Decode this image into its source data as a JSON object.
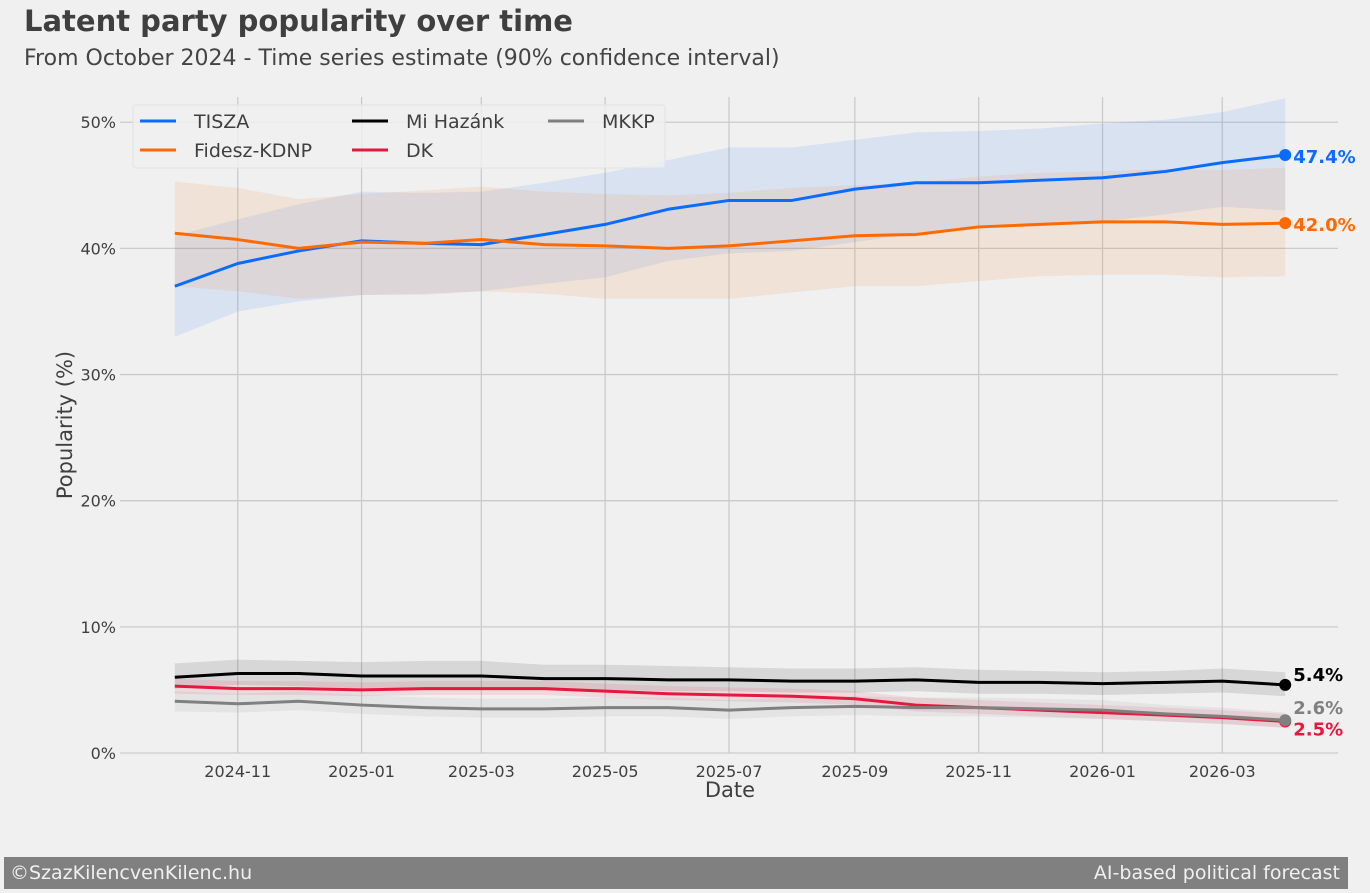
{
  "chart_data": {
    "type": "line",
    "title": "Latent party popularity over time",
    "subtitle": "From October 2024 - Time series estimate (90% confidence interval)",
    "xlabel": "Date",
    "ylabel": "Popularity (%)",
    "xlim": [
      "2024-09-04",
      "2026-04-27"
    ],
    "ylim": [
      0,
      52
    ],
    "grid": true,
    "legend_placement": "top-left",
    "x_ticks": [
      "2024-11",
      "2025-01",
      "2025-03",
      "2025-05",
      "2025-07",
      "2025-09",
      "2025-11",
      "2026-01",
      "2026-03"
    ],
    "y_ticks": [
      0,
      10,
      20,
      30,
      40,
      50
    ],
    "y_tick_labels": [
      "0%",
      "10%",
      "20%",
      "30%",
      "40%",
      "50%"
    ],
    "x": [
      "2024-10-01",
      "2024-11-01",
      "2024-12-01",
      "2025-01-01",
      "2025-02-01",
      "2025-03-01",
      "2025-04-01",
      "2025-05-01",
      "2025-06-01",
      "2025-07-01",
      "2025-08-01",
      "2025-09-01",
      "2025-10-01",
      "2025-11-01",
      "2025-12-01",
      "2026-01-01",
      "2026-02-01",
      "2026-03-01",
      "2026-04-01"
    ],
    "series": [
      {
        "name": "TISZA",
        "color": "#0a6cff",
        "end_label": "47.4%",
        "values": [
          37.0,
          38.8,
          39.8,
          40.6,
          40.4,
          40.3,
          41.1,
          41.9,
          43.1,
          43.8,
          43.8,
          44.7,
          45.2,
          45.2,
          45.4,
          45.6,
          46.1,
          46.8,
          47.4
        ],
        "lower": [
          33.0,
          35.0,
          35.8,
          36.3,
          36.4,
          36.6,
          37.2,
          37.7,
          39.0,
          39.6,
          39.8,
          40.5,
          41.2,
          41.7,
          41.9,
          42.1,
          42.7,
          43.3,
          43.0
        ],
        "upper": [
          41.0,
          42.3,
          43.5,
          44.5,
          44.4,
          44.5,
          45.2,
          46.0,
          47.0,
          48.0,
          48.0,
          48.6,
          49.2,
          49.3,
          49.5,
          49.9,
          50.2,
          50.8,
          51.9
        ]
      },
      {
        "name": "Fidesz-KDNP",
        "color": "#ff6a00",
        "end_label": "42.0%",
        "values": [
          41.2,
          40.7,
          40.0,
          40.5,
          40.4,
          40.7,
          40.3,
          40.2,
          40.0,
          40.2,
          40.6,
          41.0,
          41.1,
          41.7,
          41.9,
          42.1,
          42.1,
          41.9,
          42.0
        ],
        "lower": [
          37.0,
          36.6,
          36.0,
          36.3,
          36.3,
          36.6,
          36.4,
          36.0,
          36.0,
          36.0,
          36.5,
          37.0,
          37.0,
          37.4,
          37.8,
          37.9,
          37.9,
          37.7,
          37.8
        ],
        "upper": [
          45.3,
          44.8,
          43.9,
          44.3,
          44.6,
          44.9,
          44.5,
          44.3,
          44.2,
          44.4,
          44.8,
          45.0,
          45.2,
          45.7,
          46.0,
          46.1,
          46.3,
          46.2,
          46.4
        ]
      },
      {
        "name": "Mi Hazánk",
        "color": "#000000",
        "end_label": "5.4%",
        "values": [
          6.0,
          6.3,
          6.3,
          6.1,
          6.1,
          6.1,
          5.9,
          5.9,
          5.8,
          5.8,
          5.7,
          5.7,
          5.8,
          5.6,
          5.6,
          5.5,
          5.6,
          5.7,
          5.4
        ],
        "lower": [
          5.1,
          5.4,
          5.3,
          5.1,
          5.1,
          5.1,
          5.0,
          5.0,
          4.9,
          4.9,
          4.8,
          4.8,
          4.9,
          4.7,
          4.7,
          4.6,
          4.7,
          4.8,
          4.5
        ],
        "upper": [
          7.1,
          7.4,
          7.3,
          7.2,
          7.3,
          7.3,
          7.0,
          7.0,
          6.9,
          6.8,
          6.7,
          6.7,
          6.8,
          6.6,
          6.5,
          6.4,
          6.5,
          6.7,
          6.4
        ]
      },
      {
        "name": "DK",
        "color": "#e8173d",
        "end_label": "2.5%",
        "values": [
          5.3,
          5.1,
          5.1,
          5.0,
          5.1,
          5.1,
          5.1,
          4.9,
          4.7,
          4.6,
          4.5,
          4.3,
          3.8,
          3.6,
          3.4,
          3.2,
          3.0,
          2.8,
          2.5
        ],
        "lower": [
          4.7,
          4.6,
          4.6,
          4.5,
          4.6,
          4.6,
          4.6,
          4.4,
          4.2,
          4.1,
          4.0,
          3.8,
          3.3,
          3.1,
          2.9,
          2.7,
          2.5,
          2.3,
          2.0
        ],
        "upper": [
          5.9,
          5.7,
          5.7,
          5.6,
          5.7,
          5.7,
          5.7,
          5.5,
          5.3,
          5.2,
          5.1,
          4.9,
          4.4,
          4.2,
          4.0,
          3.8,
          3.6,
          3.4,
          3.1
        ]
      },
      {
        "name": "MKKP",
        "color": "#808080",
        "end_label": "2.6%",
        "values": [
          4.1,
          3.9,
          4.1,
          3.8,
          3.6,
          3.5,
          3.5,
          3.6,
          3.6,
          3.4,
          3.6,
          3.7,
          3.6,
          3.6,
          3.5,
          3.4,
          3.1,
          2.9,
          2.6
        ],
        "lower": [
          3.3,
          3.2,
          3.4,
          3.1,
          2.9,
          2.8,
          2.8,
          2.9,
          2.9,
          2.7,
          2.9,
          3.0,
          2.9,
          2.9,
          2.8,
          2.7,
          2.5,
          2.3,
          2.0
        ],
        "upper": [
          4.9,
          4.7,
          4.9,
          4.6,
          4.4,
          4.3,
          4.3,
          4.4,
          4.4,
          4.2,
          4.4,
          4.5,
          4.4,
          4.4,
          4.3,
          4.2,
          3.8,
          3.6,
          3.2
        ]
      }
    ]
  },
  "footer": {
    "left": "©SzazKilencvenKilenc.hu",
    "right": "AI-based political forecast"
  }
}
